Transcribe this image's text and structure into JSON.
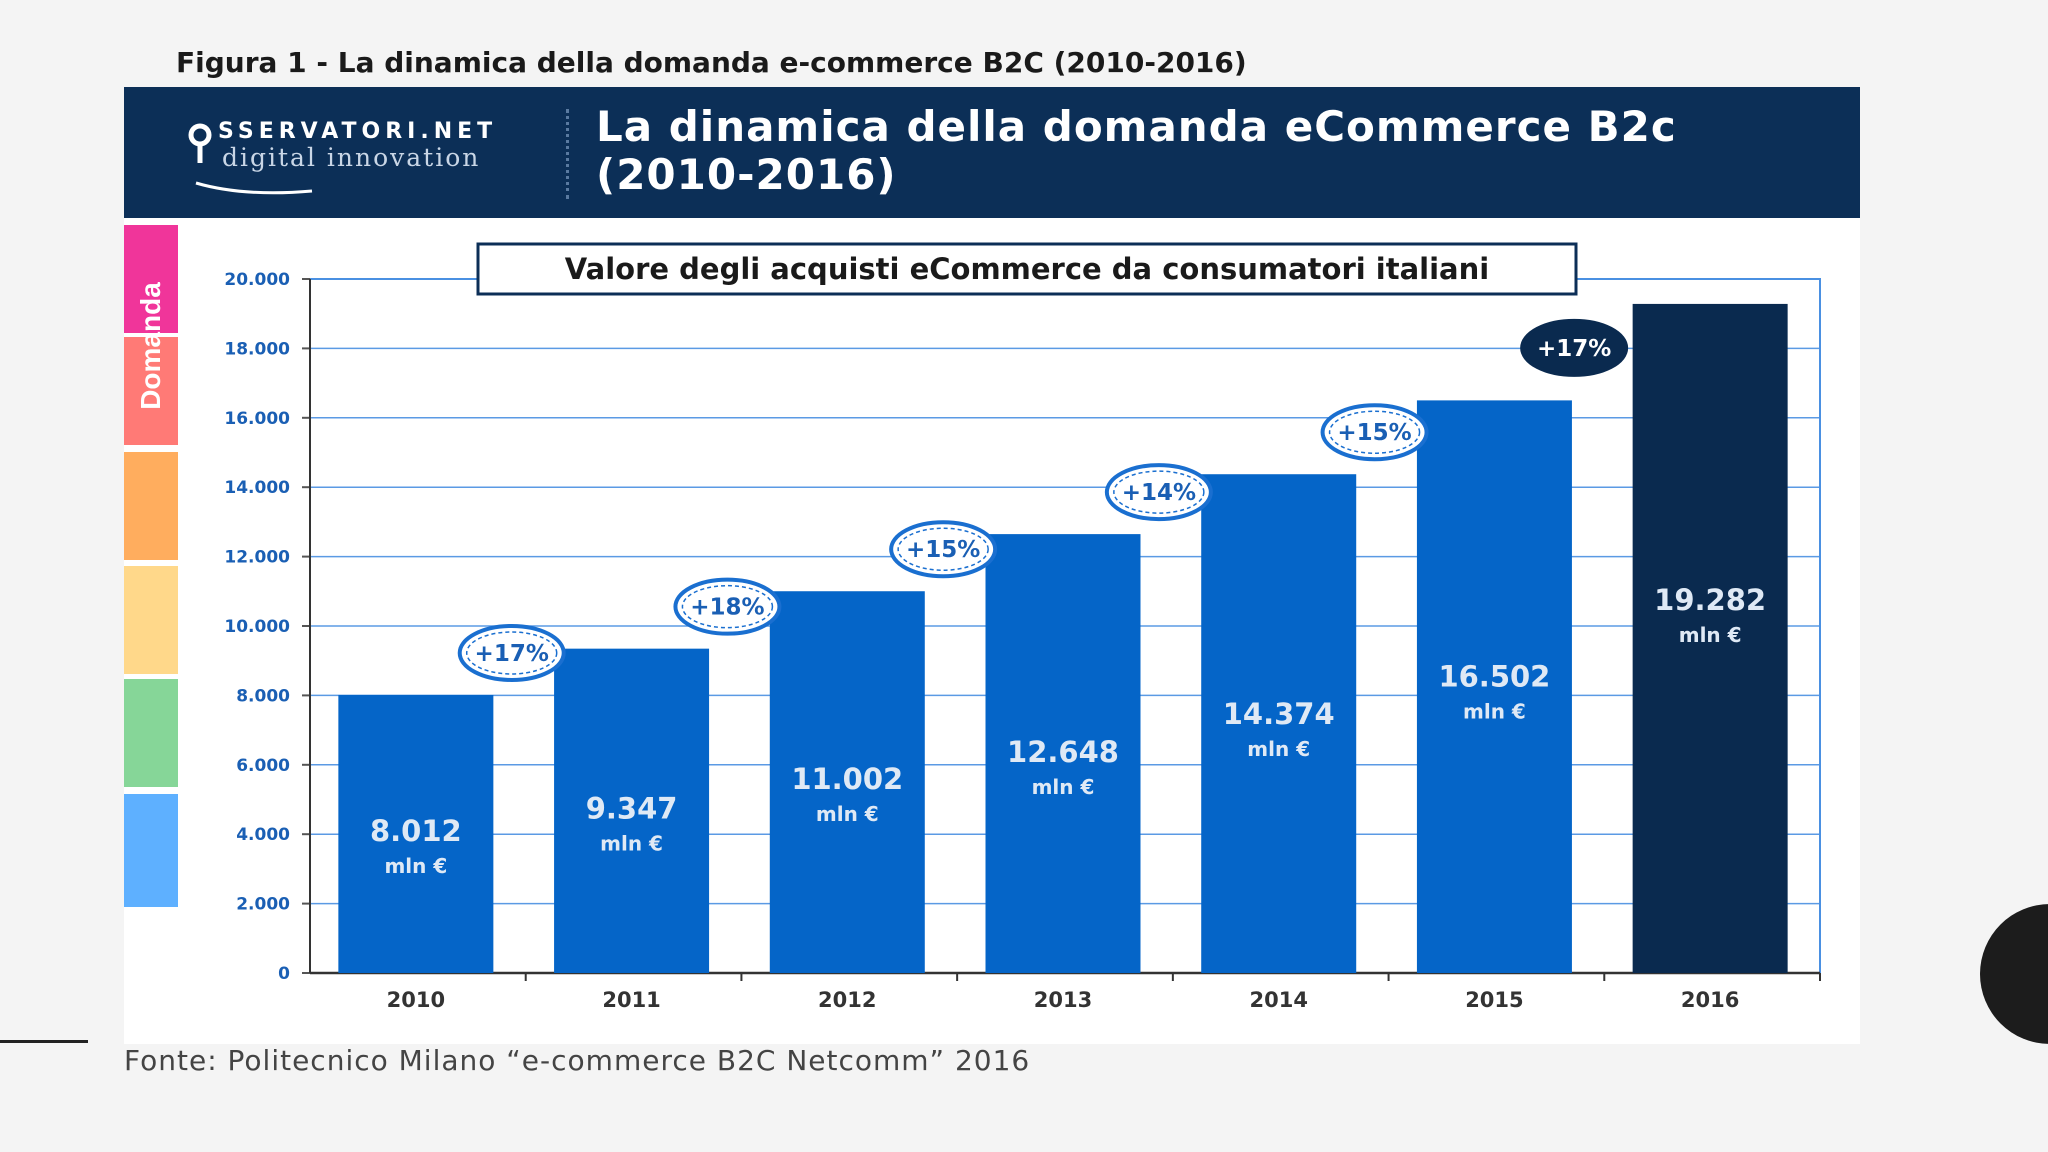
{
  "caption": "Figura 1 - La dinamica della domanda e-commerce B2C (2010-2016)",
  "banner": {
    "logo_line1": "SSERVATORI.NET",
    "logo_line2": "digital innovation",
    "title_line1": "La dinamica della domanda eCommerce B2c",
    "title_line2": "(2010-2016)"
  },
  "side_label": "Domanda",
  "side_colors": [
    "#f0359a",
    "#ff7a76",
    "#ffad5e",
    "#ffd88a",
    "#86d698",
    "#5eb0ff"
  ],
  "source": "Fonte: Politecnico Milano “e-commerce B2C Netcomm” 2016",
  "colors": {
    "bar": "#0565c8",
    "bar_highlight": "#0a2a4f",
    "grid": "#4a90e2",
    "badge_fill": "#ffffff",
    "badge_stroke": "#1a6fd0"
  },
  "chart_data": {
    "type": "bar",
    "title": "Valore degli acquisti eCommerce da consumatori italiani",
    "categories": [
      "2010",
      "2011",
      "2012",
      "2013",
      "2014",
      "2015",
      "2016"
    ],
    "values": [
      8012,
      9347,
      11002,
      12648,
      14374,
      16502,
      19282
    ],
    "value_labels": [
      "8.012",
      "9.347",
      "11.002",
      "12.648",
      "14.374",
      "16.502",
      "19.282"
    ],
    "unit_label": "mln €",
    "growth_labels": [
      "+17%",
      "+18%",
      "+15%",
      "+14%",
      "+15%",
      "+17%"
    ],
    "yticks": [
      0,
      2000,
      4000,
      6000,
      8000,
      10000,
      12000,
      14000,
      16000,
      18000,
      20000
    ],
    "ytick_labels": [
      "0",
      "2.000",
      "4.000",
      "6.000",
      "8.000",
      "10.000",
      "12.000",
      "14.000",
      "16.000",
      "18.000",
      "20.000"
    ],
    "ylim": [
      0,
      20000
    ],
    "xlabel": "",
    "ylabel": "",
    "grid": true,
    "highlight_index": 6
  }
}
